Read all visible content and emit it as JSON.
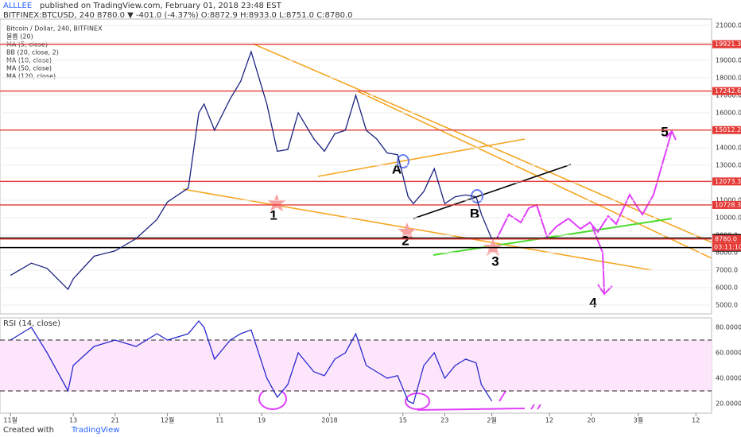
{
  "header": {
    "publisher": "ALLLEE",
    "published": "published on TradingView.com, February 01, 2018 23:48 EST",
    "symbol_line": "BITFINEX:BTCUSD, 240  8780.0 ▼ -401.0 (-4.37%) O:8872.9 H:8933.0 L:8751.0 C:8780.0"
  },
  "legend": [
    "Bitcoin / Dollar, 240, BITFINEX",
    "볼륨 (20)",
    "MA (5, close)",
    "BB (20, close, 2)",
    "MA (10, close)",
    "MA (50, close)",
    "MA (120, close)"
  ],
  "annotations": [
    "1",
    "2",
    "3",
    "4",
    "5",
    "A",
    "B"
  ],
  "countdown": "03:11:10",
  "footer": {
    "created": "Created with",
    "brand": "TradingView"
  },
  "chart_data": [
    {
      "type": "line",
      "color": "#1a237e",
      "xlim": [
        "2017-10-30",
        "2018-03-15"
      ],
      "ylim": [
        4500,
        21360
      ],
      "yticks": [
        {
          "value": 5000,
          "label": "5000.0"
        },
        {
          "value": 6000,
          "label": "6000.0"
        },
        {
          "value": 7000,
          "label": "7000.0"
        },
        {
          "value": 8000,
          "label": "8000.0"
        },
        {
          "value": 9000,
          "label": "9000.0"
        },
        {
          "value": 10000,
          "label": "10000.0"
        },
        {
          "value": 11000,
          "label": "11000.0"
        },
        {
          "value": 12000,
          "label": "12000.0"
        },
        {
          "value": 13000,
          "label": "13000.0"
        },
        {
          "value": 14000,
          "label": "14000.0"
        },
        {
          "value": 15000,
          "label": "15000.0"
        },
        {
          "value": 16000,
          "label": "16000.0"
        },
        {
          "value": 17000,
          "label": "17000.0"
        },
        {
          "value": 18000,
          "label": "18000.0"
        },
        {
          "value": 19000,
          "label": "19000.0"
        },
        {
          "value": 20000,
          "label": "20000.0"
        },
        {
          "value": 21000,
          "label": "21000.0"
        }
      ],
      "grid": true,
      "levels": [
        {
          "value": 19921.3,
          "color": "#e53935"
        },
        {
          "value": 17242.6,
          "color": "#e53935"
        },
        {
          "value": 15012.2,
          "color": "#e53935"
        },
        {
          "value": 12073.3,
          "color": "#e53935"
        },
        {
          "value": 10728.3,
          "color": "#e53935"
        },
        {
          "value": 8839.1,
          "color": "#000000"
        },
        {
          "value": 8780,
          "label": "8780.0",
          "color": "#e53935"
        },
        {
          "value": 8289.3,
          "color": "#000000"
        }
      ],
      "x": [
        "2017-11-01",
        "2017-11-05",
        "2017-11-08",
        "2017-11-12",
        "2017-11-13",
        "2017-11-17",
        "2017-11-21",
        "2017-11-25",
        "2017-11-29",
        "2017-12-01",
        "2017-12-05",
        "2017-12-07",
        "2017-12-08",
        "2017-12-10",
        "2017-12-13",
        "2017-12-15",
        "2017-12-17",
        "2017-12-20",
        "2017-12-22",
        "2017-12-24",
        "2017-12-26",
        "2017-12-29",
        "2017-12-31",
        "2018-01-02",
        "2018-01-04",
        "2018-01-06",
        "2018-01-08",
        "2018-01-10",
        "2018-01-12",
        "2018-01-14",
        "2018-01-16",
        "2018-01-17",
        "2018-01-19",
        "2018-01-21",
        "2018-01-23",
        "2018-01-25",
        "2018-01-27",
        "2018-01-29",
        "2018-01-30",
        "2018-02-01"
      ],
      "values": [
        6700,
        7400,
        7100,
        5900,
        6500,
        7800,
        8100,
        8800,
        9900,
        10900,
        11700,
        16000,
        16500,
        15000,
        16800,
        17800,
        19500,
        16500,
        13800,
        13900,
        16000,
        14500,
        13800,
        14800,
        15000,
        17000,
        15000,
        14500,
        13700,
        13600,
        11200,
        10800,
        11500,
        12800,
        10800,
        11200,
        11300,
        11200,
        10200,
        8780
      ]
    },
    {
      "type": "line",
      "title": "RSI (14, close)",
      "color": "#2a2ad0",
      "xlim": [
        "2017-10-30",
        "2018-03-15"
      ],
      "ylim": [
        12.5,
        87.5
      ],
      "yticks": [
        {
          "value": 80,
          "label": "80.0000"
        },
        {
          "value": 60,
          "label": "60.0000"
        },
        {
          "value": 40,
          "label": "40.0000"
        },
        {
          "value": 20,
          "label": "20.0000"
        }
      ],
      "bands": [
        70,
        30
      ],
      "xticks": [
        {
          "value": "2017-11-01",
          "label": "11월"
        },
        {
          "value": "2017-11-13",
          "label": "13"
        },
        {
          "value": "2017-11-21",
          "label": "21"
        },
        {
          "value": "2017-12-01",
          "label": "12월"
        },
        {
          "value": "2017-12-11",
          "label": "11"
        },
        {
          "value": "2017-12-19",
          "label": "19"
        },
        {
          "value": "2018-01-01",
          "label": "2018"
        },
        {
          "value": "2018-01-15",
          "label": "15"
        },
        {
          "value": "2018-01-23",
          "label": "23"
        },
        {
          "value": "2018-02-01",
          "label": "2월"
        },
        {
          "value": "2018-02-12",
          "label": "12"
        },
        {
          "value": "2018-02-20",
          "label": "20"
        },
        {
          "value": "2018-03-01",
          "label": "3월"
        },
        {
          "value": "2018-03-12",
          "label": "12"
        }
      ],
      "x": [
        "2017-11-01",
        "2017-11-05",
        "2017-11-08",
        "2017-11-12",
        "2017-11-13",
        "2017-11-17",
        "2017-11-21",
        "2017-11-25",
        "2017-11-29",
        "2017-12-01",
        "2017-12-05",
        "2017-12-07",
        "2017-12-08",
        "2017-12-10",
        "2017-12-13",
        "2017-12-15",
        "2017-12-17",
        "2017-12-20",
        "2017-12-22",
        "2017-12-24",
        "2017-12-26",
        "2017-12-29",
        "2017-12-31",
        "2018-01-02",
        "2018-01-04",
        "2018-01-06",
        "2018-01-08",
        "2018-01-10",
        "2018-01-12",
        "2018-01-14",
        "2018-01-16",
        "2018-01-17",
        "2018-01-19",
        "2018-01-21",
        "2018-01-23",
        "2018-01-25",
        "2018-01-27",
        "2018-01-29",
        "2018-01-30",
        "2018-02-01"
      ],
      "values": [
        70,
        80,
        60,
        30,
        50,
        65,
        70,
        65,
        75,
        70,
        75,
        85,
        80,
        55,
        70,
        75,
        78,
        40,
        25,
        35,
        60,
        45,
        42,
        55,
        60,
        75,
        50,
        45,
        40,
        42,
        22,
        20,
        50,
        60,
        40,
        50,
        55,
        52,
        35,
        22
      ]
    }
  ]
}
